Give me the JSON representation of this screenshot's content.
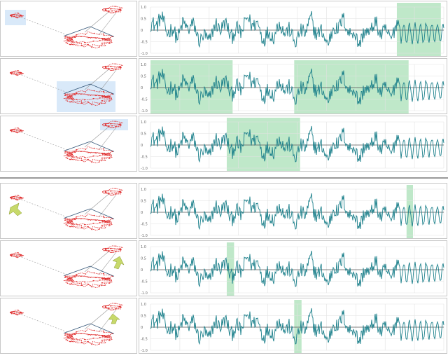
{
  "figure": {
    "groups": [
      {
        "rows": [
          {
            "embedding_highlight": "small-attractor-box",
            "arrow": null,
            "time_highlights": [
              [
                0.84,
                0.99
              ]
            ]
          },
          {
            "embedding_highlight": "main-attractor-box",
            "arrow": null,
            "time_highlights": [
              [
                0.0,
                0.28
              ],
              [
                0.49,
                0.88
              ]
            ]
          },
          {
            "embedding_highlight": "upper-attractor-box",
            "arrow": null,
            "time_highlights": [
              [
                0.26,
                0.51
              ]
            ]
          }
        ]
      },
      {
        "rows": [
          {
            "embedding_highlight": null,
            "arrow": "left-small-attractor",
            "time_highlights": [
              [
                0.873,
                0.895
              ]
            ]
          },
          {
            "embedding_highlight": null,
            "arrow": "upper-attractor",
            "time_highlights": [
              [
                0.26,
                0.285
              ]
            ]
          },
          {
            "embedding_highlight": null,
            "arrow": "upper-attractor-lower",
            "time_highlights": [
              [
                0.49,
                0.515
              ]
            ]
          }
        ]
      }
    ],
    "colors": {
      "signal": "#1a7f8a",
      "highlight": "#bfe8c9",
      "box": "#cfe3f7",
      "attractor": "#e03030",
      "arrow": "#c7d96a"
    },
    "y_ticks_row_a": [
      "1.0",
      "0.5",
      "0",
      "-0.5",
      "-1.0"
    ],
    "y_ticks_row_b": [
      "1.0",
      "0.5",
      "0",
      "-0.5",
      "-1.0"
    ]
  }
}
